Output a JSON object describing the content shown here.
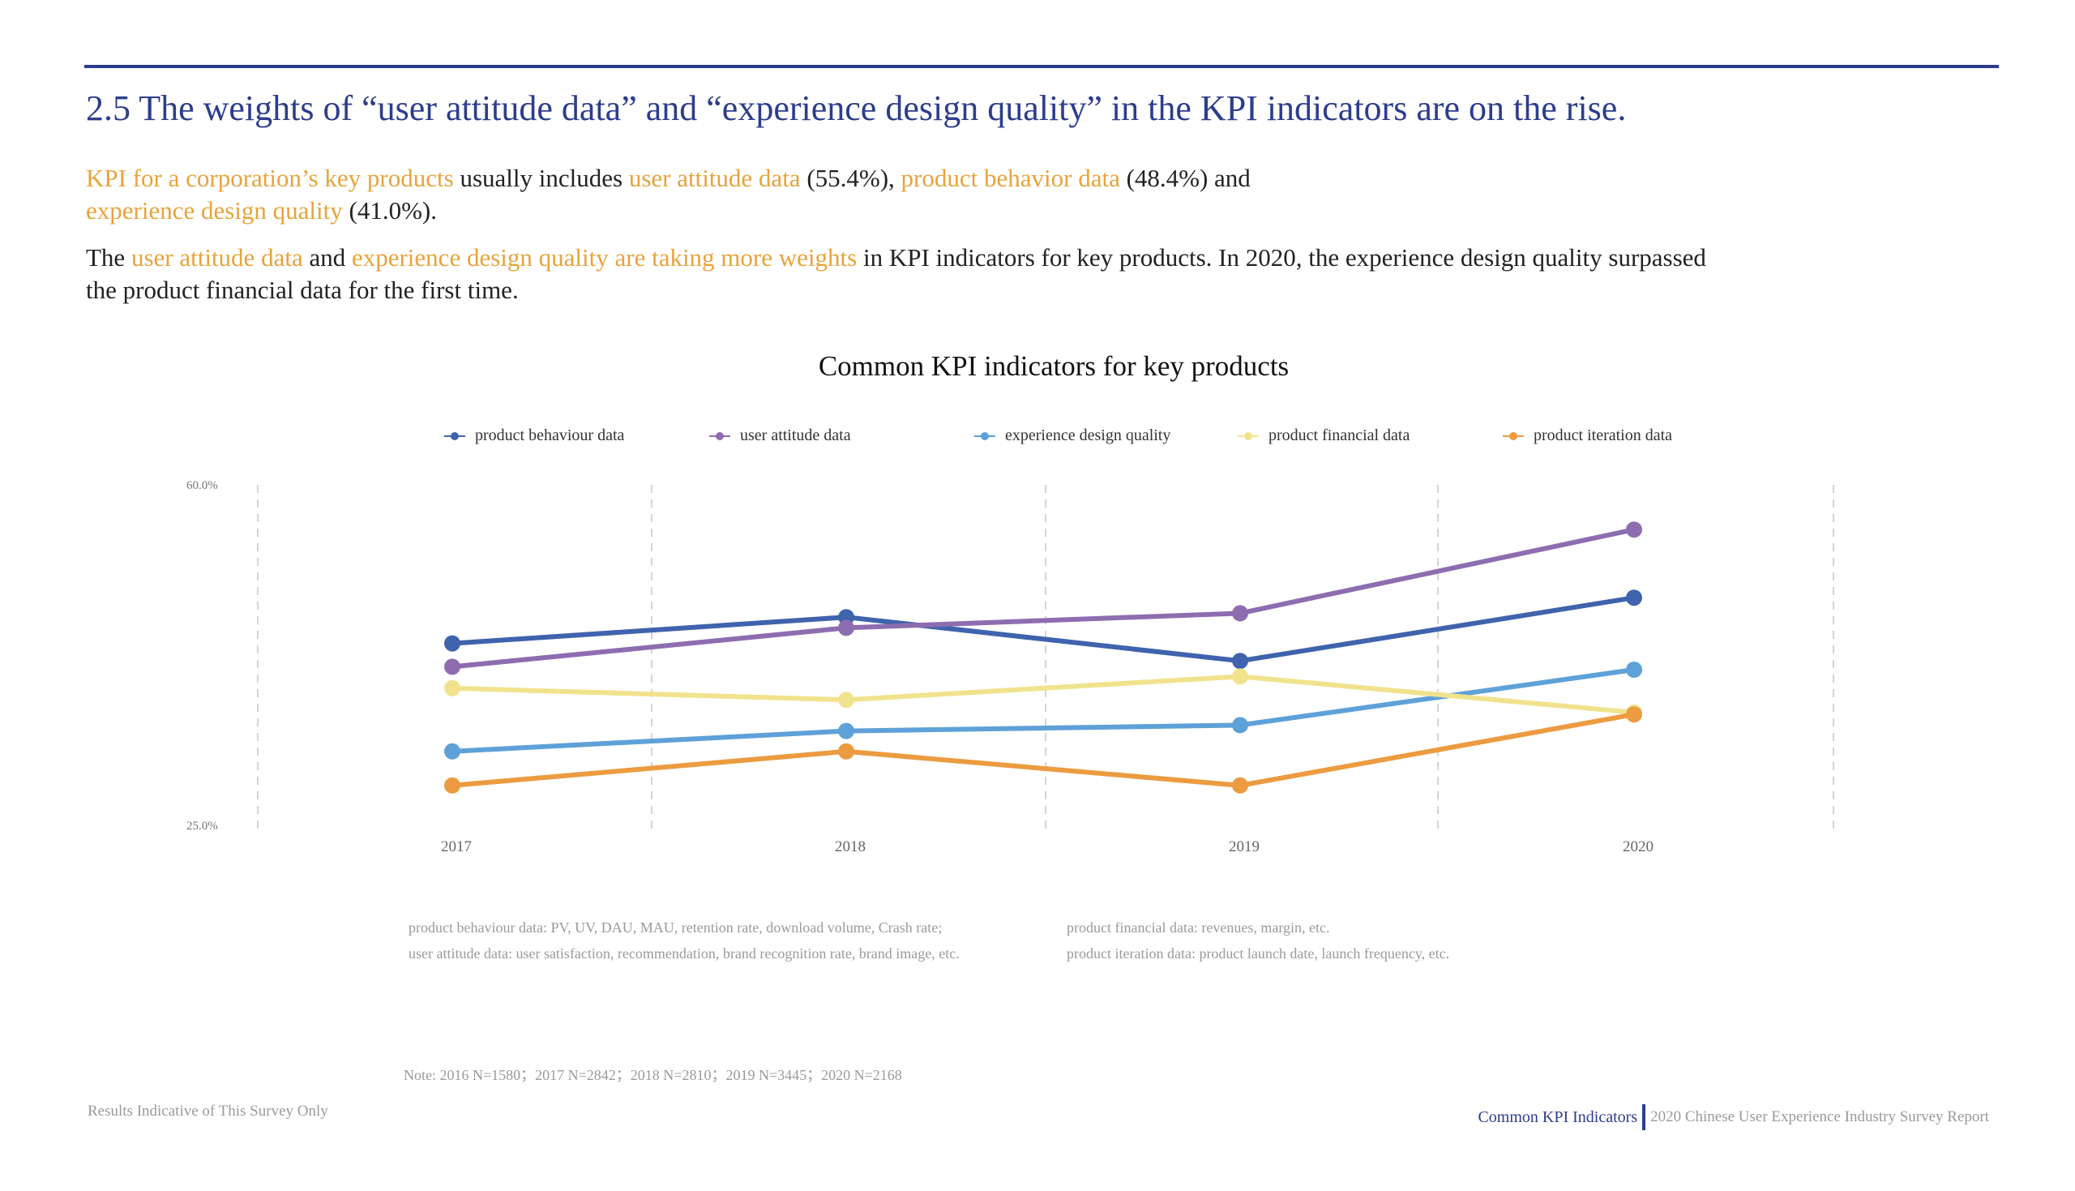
{
  "header": {
    "title": "2.5 The weights of “user attitude data” and “experience design quality” in the KPI indicators are on the rise."
  },
  "paragraph1": {
    "s1": "KPI for a corporation’s key products",
    "s2": " usually includes ",
    "s3": "user attitude data",
    "s4": " (55.4%), ",
    "s5": "product behavior data",
    "s6": " (48.4%) and ",
    "s7": "experience design quality",
    "s8": " (41.0%)."
  },
  "paragraph2": {
    "s1": "The ",
    "s2": "user attitude data",
    "s3": " and ",
    "s4": "experience design quality are taking more weights",
    "s5": " in KPI indicators for key products. In 2020, the experience design quality surpassed the product financial data for the first time."
  },
  "footnotes": {
    "behaviour": "product behaviour data: PV, UV, DAU, MAU, retention rate, download volume, Crash rate;",
    "attitude": "user attitude data: user satisfaction, recommendation, brand recognition rate, brand image, etc.",
    "financial": "product financial data: revenues, margin, etc.",
    "iteration": "product iteration data: product launch date, launch frequency, etc."
  },
  "sample_note": "Note: 2016 N=1580；2017 N=2842；2018 N=2810；2019 N=3445；2020 N=2168",
  "disclaimer": "Results Indicative of This Survey Only",
  "footer": {
    "section": "Common KPI Indicators",
    "report": "2020 Chinese User Experience Industry Survey Report"
  },
  "colors": {
    "primary": "#2d3d8c",
    "highlight": "#e8a33a",
    "muted": "#9a9a9a"
  },
  "chart_data": {
    "type": "line",
    "title": "Common KPI indicators for key products",
    "categories": [
      "2017",
      "2018",
      "2019",
      "2020"
    ],
    "ylim": [
      25.0,
      60.0
    ],
    "ytick_labels": [
      "60.0%",
      "25.0%"
    ],
    "grid": "vertical dashed",
    "legend_position": "top",
    "series": [
      {
        "name": "product behaviour data",
        "color": "#3f63ad",
        "values": [
          43.7,
          46.4,
          41.9,
          48.4
        ]
      },
      {
        "name": "user attitude data",
        "color": "#8d6db0",
        "values": [
          41.3,
          45.3,
          46.8,
          55.4
        ]
      },
      {
        "name": "experience design quality",
        "color": "#5ea1d8",
        "values": [
          32.6,
          34.7,
          35.3,
          41.0
        ]
      },
      {
        "name": "product financial data",
        "color": "#f1e38d",
        "values": [
          39.1,
          37.9,
          40.3,
          36.6
        ]
      },
      {
        "name": "product iteration data",
        "color": "#ec9b40",
        "values": [
          29.1,
          32.6,
          29.1,
          36.4
        ]
      }
    ]
  }
}
